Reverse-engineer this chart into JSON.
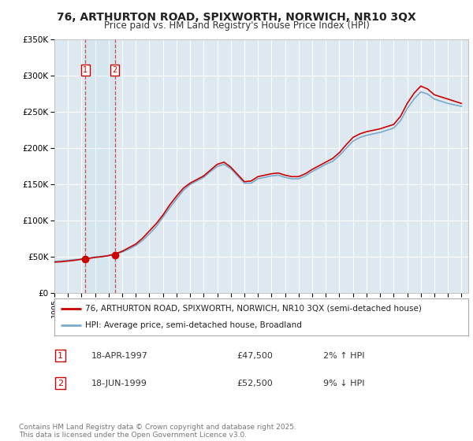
{
  "title": "76, ARTHURTON ROAD, SPIXWORTH, NORWICH, NR10 3QX",
  "subtitle": "Price paid vs. HM Land Registry's House Price Index (HPI)",
  "legend_line1": "76, ARTHURTON ROAD, SPIXWORTH, NORWICH, NR10 3QX (semi-detached house)",
  "legend_line2": "HPI: Average price, semi-detached house, Broadland",
  "footer": "Contains HM Land Registry data © Crown copyright and database right 2025.\nThis data is licensed under the Open Government Licence v3.0.",
  "sale1_label": "1",
  "sale1_date": "18-APR-1997",
  "sale1_price": "£47,500",
  "sale1_hpi": "2% ↑ HPI",
  "sale2_label": "2",
  "sale2_date": "18-JUN-1999",
  "sale2_price": "£52,500",
  "sale2_hpi": "9% ↓ HPI",
  "sale1_x": 1997.29,
  "sale1_y": 47500,
  "sale2_x": 1999.46,
  "sale2_y": 52500,
  "ylim": [
    0,
    350000
  ],
  "xlim": [
    1995.0,
    2025.5
  ],
  "red_color": "#cc0000",
  "blue_color": "#7aaacc",
  "background_plot": "#dde8f0",
  "grid_color": "#ffffff"
}
